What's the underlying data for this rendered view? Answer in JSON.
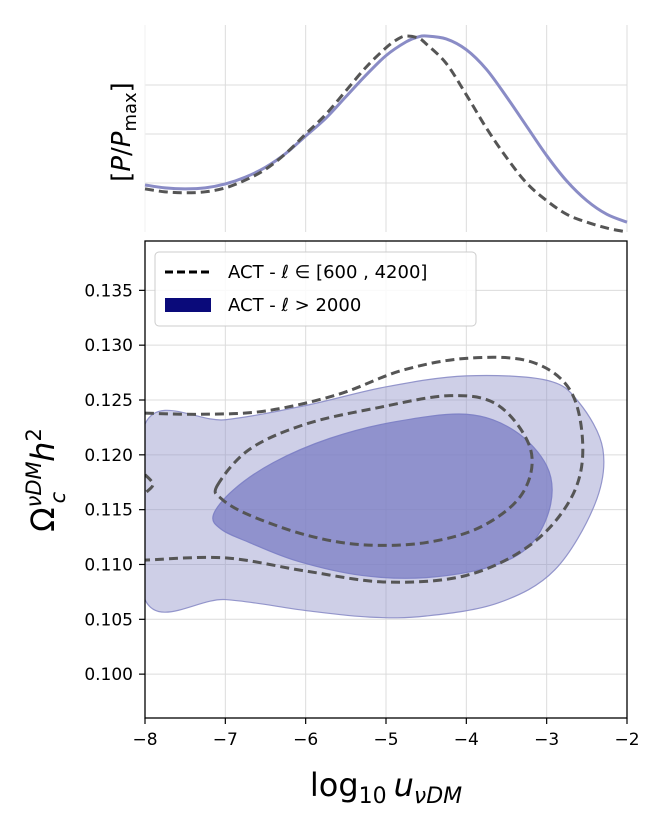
{
  "chart_data": [
    {
      "type": "line",
      "panel": "1D marginal posterior",
      "ylabel": "[P/P_max]",
      "ylabel_parts": {
        "open": "[",
        "p": "P",
        "slash": "/",
        "pmax": "P",
        "sub": "max",
        "close": "]"
      },
      "xlim": [
        -8,
        -2
      ],
      "ylim": [
        0,
        1
      ],
      "grid": true,
      "series": [
        {
          "name": "ACT - ℓ > 2000",
          "style": "solid",
          "color": "#8a8cc6",
          "x": [
            -8,
            -7.75,
            -7.5,
            -7.25,
            -7,
            -6.75,
            -6.5,
            -6.25,
            -6,
            -5.75,
            -5.5,
            -5.25,
            -5,
            -4.75,
            -4.6,
            -4.5,
            -4.25,
            -4,
            -3.75,
            -3.5,
            -3.25,
            -3,
            -2.75,
            -2.5,
            -2.25,
            -2
          ],
          "y": [
            0.24,
            0.225,
            0.22,
            0.225,
            0.245,
            0.28,
            0.33,
            0.4,
            0.49,
            0.58,
            0.69,
            0.8,
            0.9,
            0.97,
            0.995,
            1.0,
            0.985,
            0.93,
            0.83,
            0.69,
            0.54,
            0.39,
            0.26,
            0.16,
            0.09,
            0.05
          ]
        },
        {
          "name": "ACT - ℓ ∈ [600 , 4200]",
          "style": "dashed",
          "color": "#555555",
          "x": [
            -8,
            -7.75,
            -7.5,
            -7.25,
            -7,
            -6.75,
            -6.5,
            -6.25,
            -6,
            -5.75,
            -5.5,
            -5.25,
            -5,
            -4.85,
            -4.75,
            -4.6,
            -4.5,
            -4.25,
            -4,
            -3.75,
            -3.5,
            -3.25,
            -3,
            -2.75,
            -2.5,
            -2.25,
            -2
          ],
          "y": [
            0.22,
            0.205,
            0.2,
            0.205,
            0.225,
            0.265,
            0.32,
            0.4,
            0.5,
            0.6,
            0.72,
            0.84,
            0.94,
            0.985,
            1.0,
            0.99,
            0.96,
            0.86,
            0.7,
            0.53,
            0.38,
            0.25,
            0.16,
            0.09,
            0.05,
            0.02,
            0.0
          ]
        }
      ]
    },
    {
      "type": "area",
      "panel": "2D posterior contours",
      "xlabel": "log10 uνDM",
      "xlabel_parts": {
        "log": "log",
        "ten": "10",
        "u": "u",
        "sub": "νDM"
      },
      "ylabel": "Ω_c^νDM h^2",
      "ylabel_parts": {
        "omega": "Ω",
        "sub": "c",
        "sup": "νDM",
        "h": "h",
        "exp": "2"
      },
      "xlim": [
        -8,
        -2
      ],
      "ylim": [
        0.096,
        0.1395
      ],
      "xticks": [
        -8,
        -7,
        -6,
        -5,
        -4,
        -3,
        -2
      ],
      "xtick_labels": [
        "−8",
        "−7",
        "−6",
        "−5",
        "−4",
        "−3",
        "−2"
      ],
      "yticks": [
        0.1,
        0.105,
        0.11,
        0.115,
        0.12,
        0.125,
        0.13,
        0.135
      ],
      "ytick_labels": [
        "0.100",
        "0.105",
        "0.110",
        "0.115",
        "0.120",
        "0.125",
        "0.130",
        "0.135"
      ],
      "grid": true,
      "legend": {
        "placement": "top-left",
        "entries": [
          {
            "label": "ACT - ℓ ∈ [600 , 4200]",
            "style": "dashed",
            "color": "#000000"
          },
          {
            "label": "ACT - ℓ > 2000",
            "style": "filled",
            "color": "#0a0a7a"
          }
        ]
      },
      "series": [
        {
          "name": "ACT - ℓ > 2000 (95%)",
          "style": "filled",
          "color": "#8a8cc6",
          "opacity": 0.42,
          "points": [
            [
              -8,
              0.1228
            ],
            [
              -7,
              0.1232
            ],
            [
              -6,
              0.1245
            ],
            [
              -5,
              0.1262
            ],
            [
              -4,
              0.1272
            ],
            [
              -3,
              0.1268
            ],
            [
              -2.6,
              0.1248
            ],
            [
              -2.3,
              0.1205
            ],
            [
              -2.4,
              0.1155
            ],
            [
              -2.9,
              0.1095
            ],
            [
              -3.6,
              0.1065
            ],
            [
              -4.5,
              0.1053
            ],
            [
              -5.2,
              0.1052
            ],
            [
              -6,
              0.1058
            ],
            [
              -7,
              0.1068
            ],
            [
              -8,
              0.1068
            ]
          ]
        },
        {
          "name": "ACT - ℓ > 2000 (68%)",
          "style": "filled",
          "color": "#7b7ec4",
          "opacity": 0.75,
          "points": [
            [
              -7.15,
              0.1145
            ],
            [
              -6.9,
              0.1168
            ],
            [
              -6.4,
              0.1193
            ],
            [
              -5.7,
              0.1215
            ],
            [
              -4.9,
              0.123
            ],
            [
              -4.0,
              0.1237
            ],
            [
              -3.4,
              0.1222
            ],
            [
              -3.0,
              0.119
            ],
            [
              -2.95,
              0.1155
            ],
            [
              -3.2,
              0.1118
            ],
            [
              -3.7,
              0.1098
            ],
            [
              -4.5,
              0.1088
            ],
            [
              -5.3,
              0.109
            ],
            [
              -6.1,
              0.1103
            ],
            [
              -6.7,
              0.112
            ],
            [
              -7.05,
              0.1132
            ]
          ]
        },
        {
          "name": "ACT - ℓ ∈ [600 , 4200] (95%)",
          "style": "dashed",
          "color": "#555555",
          "points": [
            [
              -8,
              0.1238
            ],
            [
              -7.3,
              0.1237
            ],
            [
              -6.5,
              0.124
            ],
            [
              -5.6,
              0.1255
            ],
            [
              -4.8,
              0.1277
            ],
            [
              -4.0,
              0.1288
            ],
            [
              -3.2,
              0.1285
            ],
            [
              -2.7,
              0.1258
            ],
            [
              -2.55,
              0.1205
            ],
            [
              -2.7,
              0.116
            ],
            [
              -3.2,
              0.1118
            ],
            [
              -4.0,
              0.109
            ],
            [
              -5.0,
              0.1084
            ],
            [
              -6.0,
              0.1094
            ],
            [
              -7.0,
              0.1106
            ],
            [
              -8,
              0.1104
            ]
          ]
        },
        {
          "name": "ACT - ℓ ∈ [600 , 4200] (68%)",
          "style": "dashed",
          "color": "#555555",
          "closed": true,
          "points": [
            [
              -7.1,
              0.1172
            ],
            [
              -6.7,
              0.1205
            ],
            [
              -6.0,
              0.1228
            ],
            [
              -5.1,
              0.1243
            ],
            [
              -4.2,
              0.1254
            ],
            [
              -3.6,
              0.1245
            ],
            [
              -3.2,
              0.1205
            ],
            [
              -3.3,
              0.1165
            ],
            [
              -3.8,
              0.1135
            ],
            [
              -4.5,
              0.112
            ],
            [
              -5.3,
              0.1118
            ],
            [
              -6.0,
              0.1127
            ],
            [
              -6.7,
              0.1145
            ],
            [
              -7.05,
              0.116
            ]
          ]
        },
        {
          "name": "ACT - ℓ ∈ [600 , 4200] (edge)",
          "style": "dashed",
          "color": "#555555",
          "closed": false,
          "points": [
            [
              -8,
              0.1182
            ],
            [
              -7.9,
              0.1173
            ],
            [
              -8,
              0.1165
            ]
          ]
        }
      ]
    }
  ]
}
